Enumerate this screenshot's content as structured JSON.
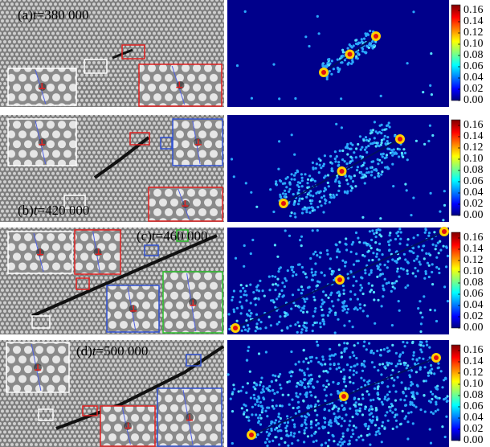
{
  "panels": [
    {
      "label": "(a)",
      "var": "t",
      "time": "=380 000"
    },
    {
      "label": "(b)",
      "var": "t",
      "time": "=420 000"
    },
    {
      "label": "(c)",
      "var": "t",
      "time": "=460 000"
    },
    {
      "label": "(d)",
      "var": "t",
      "time": "=500 000"
    }
  ],
  "colorbar": {
    "clim": [
      0,
      0.17
    ],
    "ticks": [
      0.16,
      0.14,
      0.12,
      {
        "value": 0.1,
        "label": "0.10"
      },
      0.08,
      0.06,
      0.04,
      0.02,
      {
        "value": 0,
        "label": "0.00"
      }
    ]
  }
}
